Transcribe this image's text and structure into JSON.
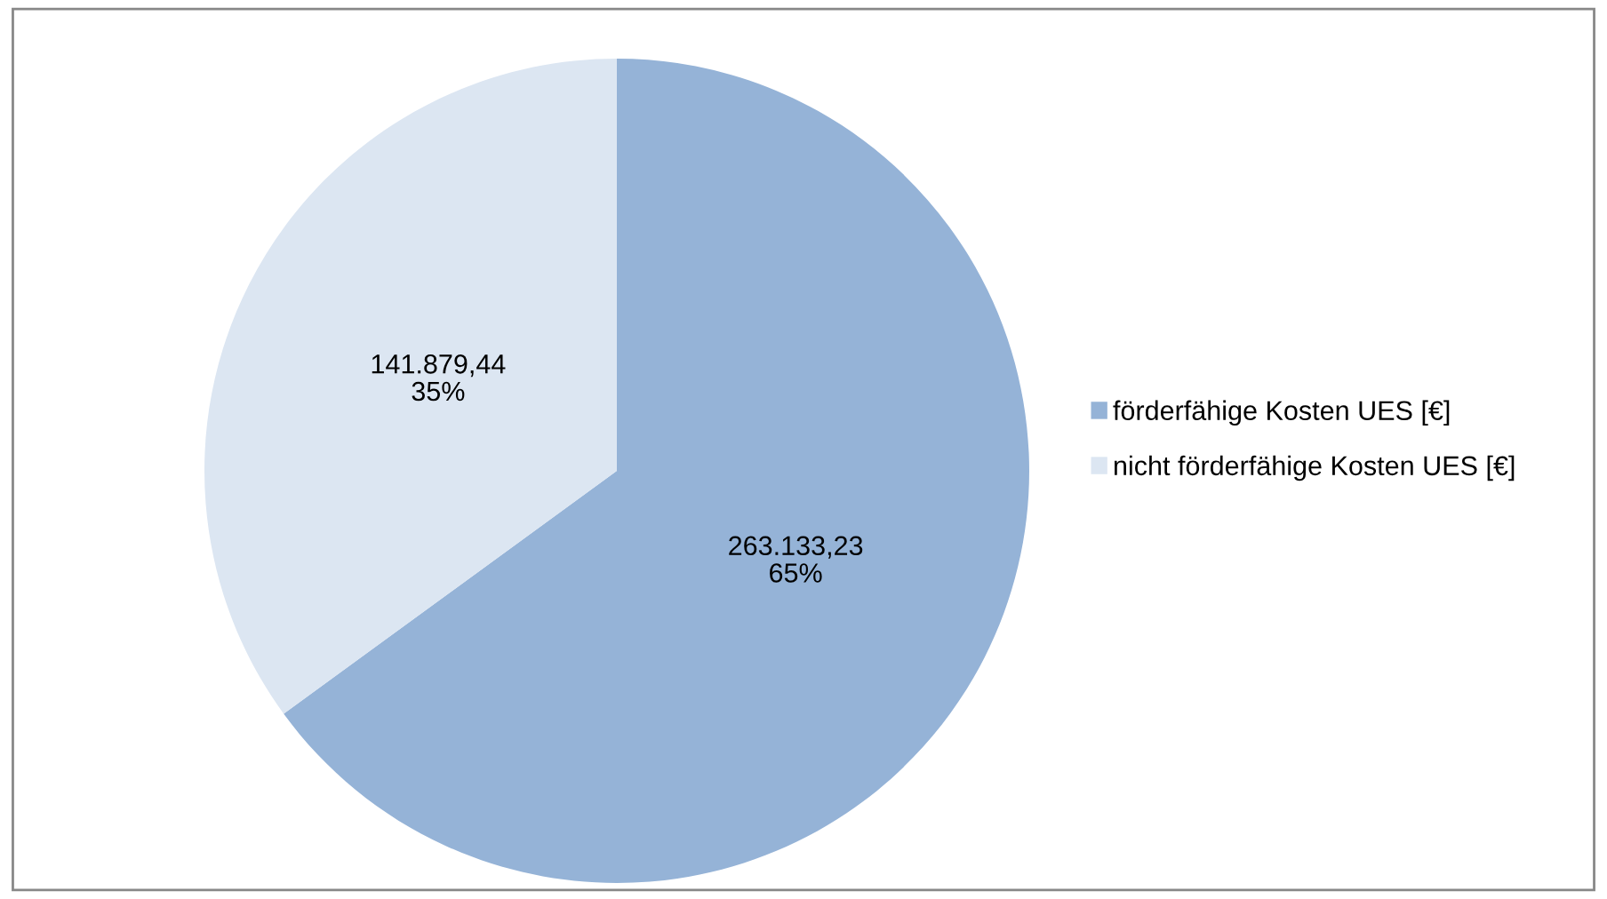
{
  "chart_data": {
    "type": "pie",
    "categories": [
      "förderfähige Kosten UES [€]",
      "nicht förderfähige Kosten UES [€]"
    ],
    "values": [
      263133.23,
      141879.44
    ],
    "colors": [
      "#95b3d7",
      "#dce6f2"
    ],
    "value_labels": [
      "263.133,23\n65%",
      "141.879,44\n35%"
    ],
    "legend": "right"
  }
}
